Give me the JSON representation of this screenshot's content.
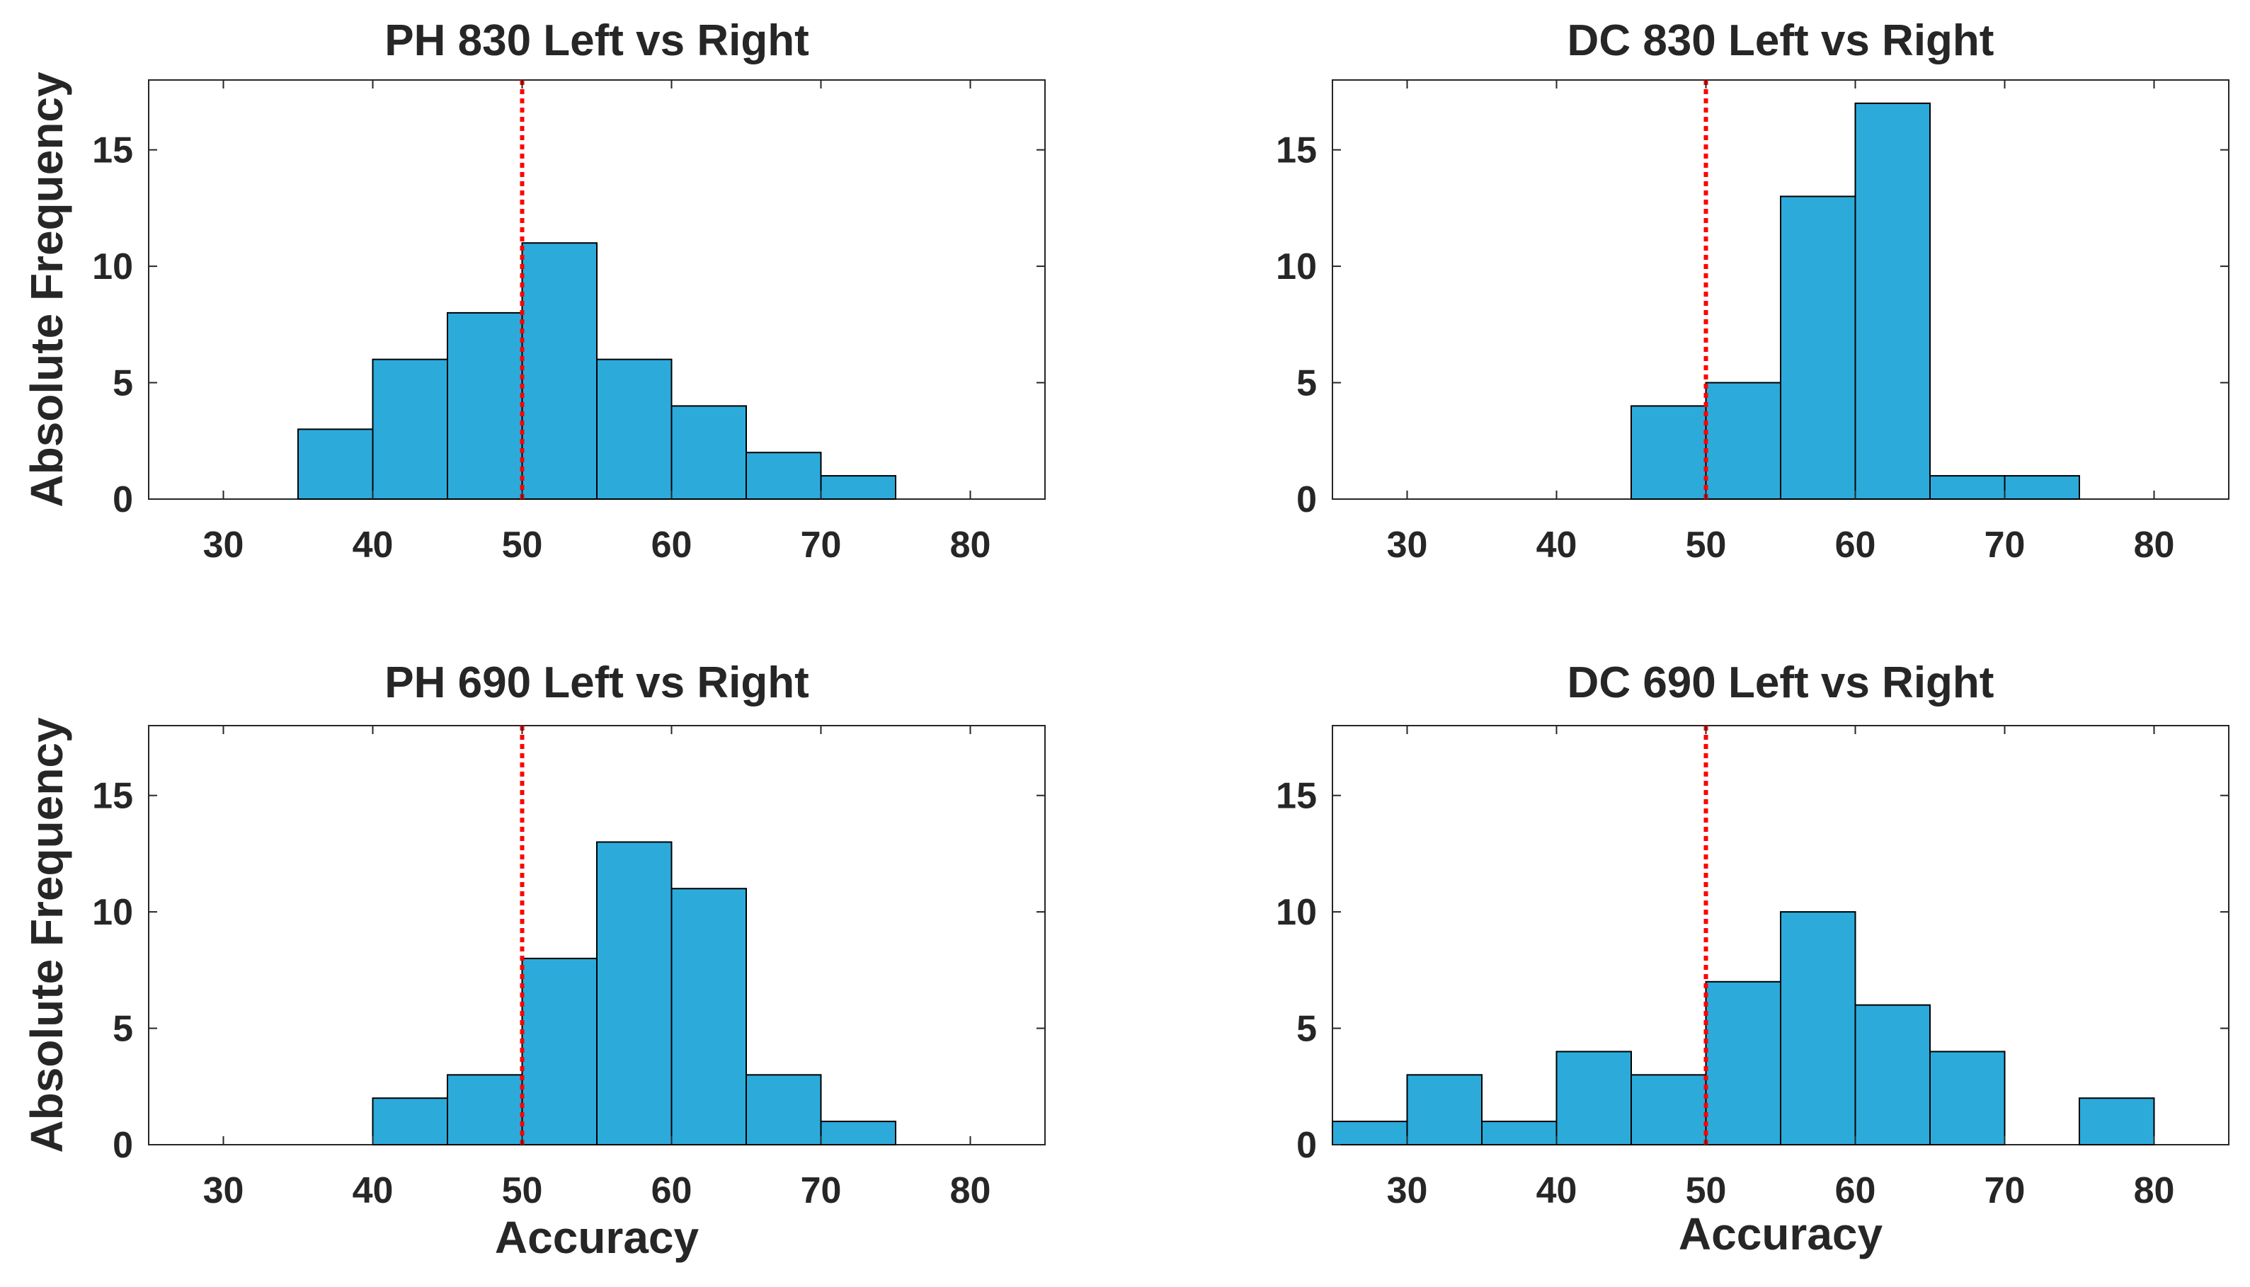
{
  "chart_data": [
    {
      "type": "bar",
      "title": "PH 830 Left vs Right",
      "ylabel": "Absolute Frequency",
      "xlabel": "",
      "xlim": [
        25,
        85
      ],
      "ylim": [
        0,
        18
      ],
      "xticks": [
        30,
        40,
        50,
        60,
        70,
        80
      ],
      "yticks": [
        0,
        5,
        10,
        15
      ],
      "bin_width": 5,
      "bins": [
        35,
        40,
        45,
        50,
        55,
        60,
        65,
        70
      ],
      "values": [
        3,
        6,
        8,
        11,
        6,
        4,
        2,
        1
      ],
      "reference_line": 50,
      "bar_color": "#2CABDB",
      "line_color": "#FF0000"
    },
    {
      "type": "bar",
      "title": "DC 830 Left vs Right",
      "ylabel": "",
      "xlabel": "",
      "xlim": [
        25,
        85
      ],
      "ylim": [
        0,
        18
      ],
      "xticks": [
        30,
        40,
        50,
        60,
        70,
        80
      ],
      "yticks": [
        0,
        5,
        10,
        15
      ],
      "bin_width": 5,
      "bins": [
        45,
        50,
        55,
        60,
        65,
        70
      ],
      "values": [
        4,
        5,
        13,
        17,
        1,
        1
      ],
      "reference_line": 50,
      "bar_color": "#2CABDB",
      "line_color": "#FF0000"
    },
    {
      "type": "bar",
      "title": "PH 690 Left vs Right",
      "ylabel": "Absolute Frequency",
      "xlabel": "Accuracy",
      "xlim": [
        25,
        85
      ],
      "ylim": [
        0,
        18
      ],
      "xticks": [
        30,
        40,
        50,
        60,
        70,
        80
      ],
      "yticks": [
        0,
        5,
        10,
        15
      ],
      "bin_width": 5,
      "bins": [
        40,
        45,
        50,
        55,
        60,
        65,
        70
      ],
      "values": [
        2,
        3,
        8,
        13,
        11,
        3,
        1
      ],
      "reference_line": 50,
      "bar_color": "#2CABDB",
      "line_color": "#FF0000"
    },
    {
      "type": "bar",
      "title": "DC 690 Left vs Right",
      "ylabel": "",
      "xlabel": "Accuracy",
      "xlim": [
        25,
        85
      ],
      "ylim": [
        0,
        18
      ],
      "xticks": [
        30,
        40,
        50,
        60,
        70,
        80
      ],
      "yticks": [
        0,
        5,
        10,
        15
      ],
      "bin_width": 5,
      "bins": [
        25,
        30,
        35,
        40,
        45,
        50,
        55,
        60,
        65,
        75
      ],
      "values": [
        1,
        3,
        1,
        4,
        3,
        7,
        10,
        6,
        4,
        2
      ],
      "reference_line": 50,
      "bar_color": "#2CABDB",
      "line_color": "#FF0000"
    }
  ]
}
